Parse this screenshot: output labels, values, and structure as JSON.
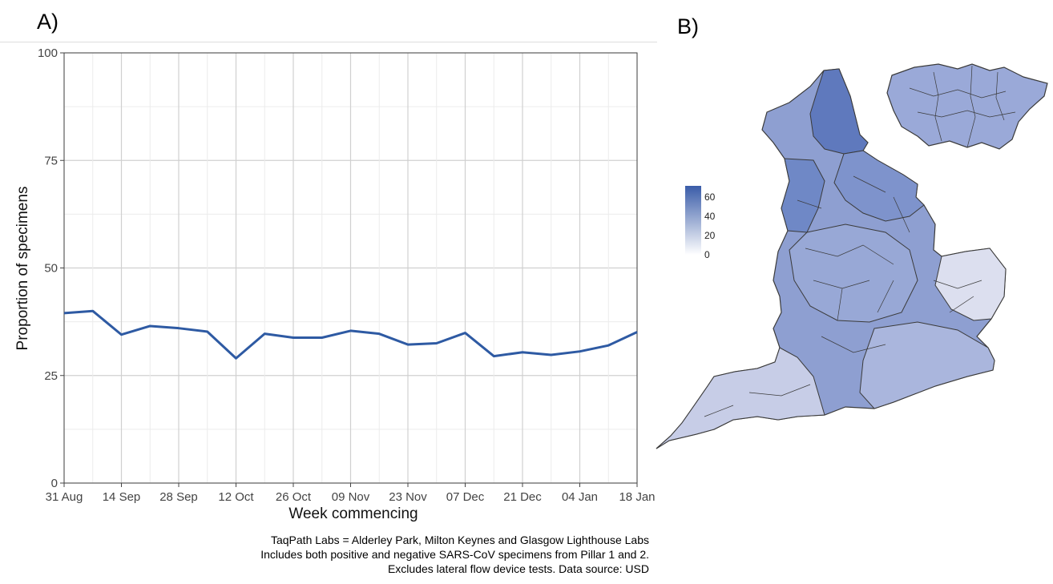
{
  "panels": {
    "a_label": "A)",
    "b_label": "B)"
  },
  "chart_data": {
    "type": "line",
    "title": "",
    "xlabel": "Week commencing",
    "ylabel": "Proportion of specimens",
    "ylim": [
      0,
      100
    ],
    "yticks": [
      0,
      25,
      50,
      75,
      100
    ],
    "grid": true,
    "x_tick_labels": [
      "31 Aug",
      "14 Sep",
      "28 Sep",
      "12 Oct",
      "26 Oct",
      "09 Nov",
      "23 Nov",
      "07 Dec",
      "21 Dec",
      "04 Jan",
      "18 Jan"
    ],
    "series": [
      {
        "color": "#2e5aa3",
        "x": [
          "31 Aug",
          "07 Sep",
          "14 Sep",
          "21 Sep",
          "28 Sep",
          "05 Oct",
          "12 Oct",
          "19 Oct",
          "26 Oct",
          "02 Nov",
          "09 Nov",
          "16 Nov",
          "23 Nov",
          "30 Nov",
          "07 Dec",
          "14 Dec",
          "21 Dec",
          "28 Dec",
          "04 Jan",
          "11 Jan",
          "18 Jan"
        ],
        "values": [
          39.5,
          40.0,
          34.5,
          36.5,
          36.0,
          35.2,
          29.0,
          34.7,
          33.8,
          33.8,
          35.4,
          34.7,
          32.2,
          32.5,
          34.9,
          29.5,
          30.4,
          29.8,
          30.6,
          32.0,
          35.1
        ]
      }
    ]
  },
  "caption_lines": [
    "TaqPath Labs = Alderley Park, Milton Keynes and Glasgow Lighthouse Labs",
    "Includes both positive and negative SARS-CoV specimens from Pillar 1 and 2.",
    "Excludes lateral flow device tests. Data source: USD"
  ],
  "map_legend": {
    "ticks": [
      "60",
      "40",
      "20",
      "0"
    ],
    "color_high": "#3a5ca8",
    "color_low": "#ffffff"
  }
}
